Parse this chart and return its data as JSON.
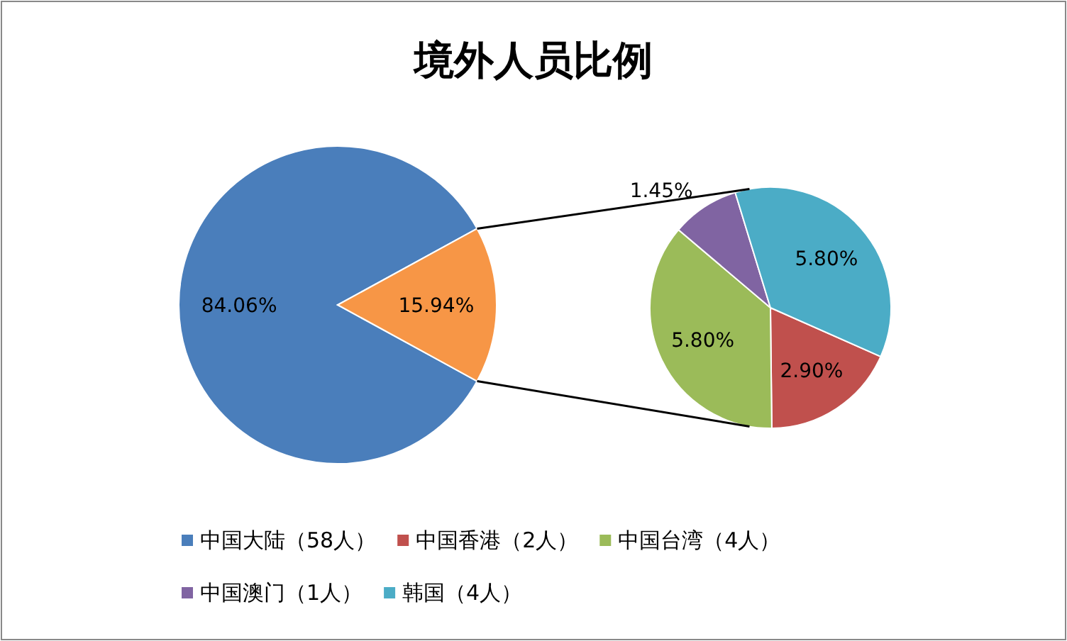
{
  "chart_data": [
    {
      "type": "pie",
      "title": "境外人员比例",
      "categories": [
        "中国大陆（58人）",
        null
      ],
      "values": [
        84.06,
        15.94
      ],
      "colors": [
        "#4a7ebb",
        "#f79646"
      ],
      "value_labels": [
        "84.06%",
        "15.94%"
      ],
      "legend": "bottom"
    },
    {
      "type": "pie",
      "categories": [
        "中国香港（2人）",
        "中国台湾（4人）",
        "中国澳门（1人）",
        "韩国（4人）"
      ],
      "values": [
        2.9,
        5.8,
        1.45,
        5.8
      ],
      "colors": [
        "#c0504d",
        "#9bbb59",
        "#8064a2",
        "#4bacc6"
      ],
      "value_labels": [
        "2.90%",
        "5.80%",
        "1.45%",
        "5.80%"
      ],
      "legend": "bottom"
    }
  ]
}
